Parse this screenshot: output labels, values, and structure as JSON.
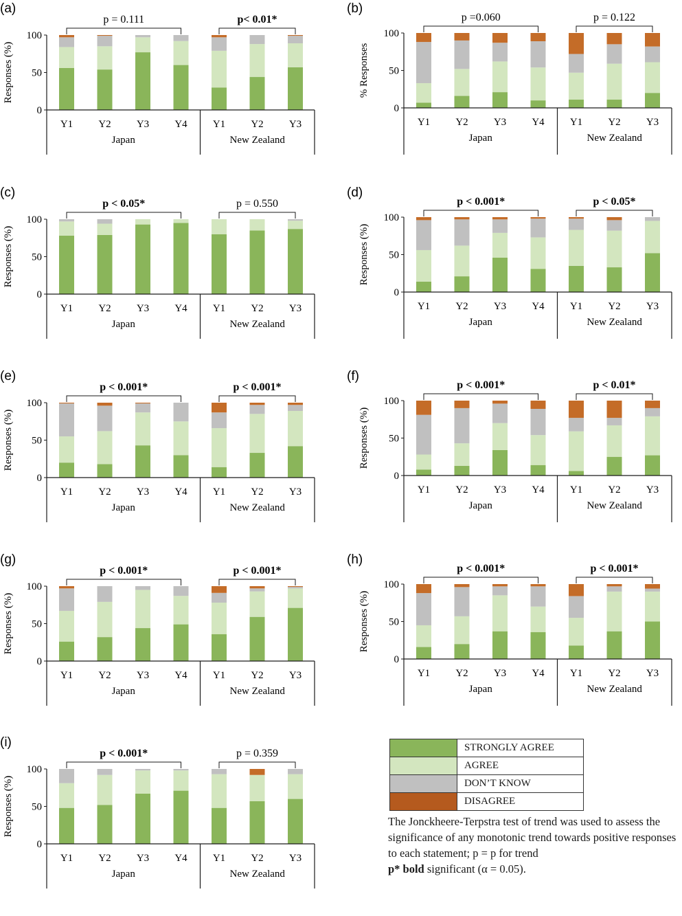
{
  "colors": {
    "strongly_agree": "#8ab55a",
    "agree": "#d3e6bf",
    "dont_know": "#c0c0c0",
    "disagree": "#c46c28",
    "axis": "#1a1a1a"
  },
  "legend": {
    "items": [
      {
        "key": "strongly_agree",
        "label": "STRONGLY AGREE",
        "color": "#8ab55a"
      },
      {
        "key": "agree",
        "label": "AGREE",
        "color": "#d3e6bf"
      },
      {
        "key": "dont_know",
        "label": "DON’T KNOW",
        "color": "#c0c0c0"
      },
      {
        "key": "disagree",
        "label": "DISAGREE",
        "color": "#b55a1e"
      }
    ]
  },
  "note": {
    "line1": "The Jonckheere-Terpstra test of trend was used to assess the significance of any monotonic trend towards positive responses to each statement;  p = p for trend",
    "bold_part": "p* bold",
    "line2": " significant (α = 0.05)."
  },
  "chart_data": [
    {
      "id": "a",
      "panel_label": "(a)",
      "type": "bar",
      "stacked": true,
      "ylabel": "Responses (%)",
      "ylim": [
        0,
        100
      ],
      "yticks": [
        0,
        50,
        100
      ],
      "groups": [
        {
          "name": "Japan",
          "categories": [
            "Y1",
            "Y2",
            "Y3",
            "Y4"
          ],
          "p_label": "p = 0.111",
          "significant": false,
          "series": {
            "strongly_agree": [
              56,
              54,
              77,
              60
            ],
            "agree": [
              28,
              31,
              20,
              32
            ],
            "dont_know": [
              13,
              14,
              3,
              8
            ],
            "disagree": [
              3,
              1,
              0,
              0
            ]
          }
        },
        {
          "name": "New Zealand",
          "categories": [
            "Y1",
            "Y2",
            "Y3"
          ],
          "p_label": "p< 0.01*",
          "significant": true,
          "series": {
            "strongly_agree": [
              30,
              44,
              57
            ],
            "agree": [
              49,
              44,
              32
            ],
            "dont_know": [
              18,
              12,
              10
            ],
            "disagree": [
              3,
              0,
              1
            ]
          }
        }
      ]
    },
    {
      "id": "b",
      "panel_label": "(b)",
      "type": "bar",
      "stacked": true,
      "ylabel": "% Responses",
      "ylim": [
        0,
        100
      ],
      "yticks": [
        0,
        50,
        100
      ],
      "groups": [
        {
          "name": "Japan",
          "categories": [
            "Y1",
            "Y2",
            "Y3",
            "Y4"
          ],
          "p_label": "p =0.060",
          "significant": false,
          "series": {
            "strongly_agree": [
              7,
              16,
              21,
              10
            ],
            "agree": [
              26,
              36,
              41,
              44
            ],
            "dont_know": [
              55,
              38,
              25,
              35
            ],
            "disagree": [
              12,
              10,
              13,
              11
            ]
          }
        },
        {
          "name": "New Zealand",
          "categories": [
            "Y1",
            "Y2",
            "Y3"
          ],
          "p_label": "p = 0.122",
          "significant": false,
          "series": {
            "strongly_agree": [
              11,
              11,
              20
            ],
            "agree": [
              36,
              48,
              41
            ],
            "dont_know": [
              25,
              26,
              21
            ],
            "disagree": [
              28,
              15,
              18
            ]
          }
        }
      ]
    },
    {
      "id": "c",
      "panel_label": "(c)",
      "type": "bar",
      "stacked": true,
      "ylabel": "Responses (%)",
      "ylim": [
        0,
        100
      ],
      "yticks": [
        0,
        50,
        100
      ],
      "groups": [
        {
          "name": "Japan",
          "categories": [
            "Y1",
            "Y2",
            "Y3",
            "Y4"
          ],
          "p_label": "p < 0.05*",
          "significant": true,
          "series": {
            "strongly_agree": [
              78,
              79,
              93,
              95
            ],
            "agree": [
              19,
              15,
              7,
              5
            ],
            "dont_know": [
              3,
              6,
              0,
              0
            ],
            "disagree": [
              0,
              0,
              0,
              0
            ]
          }
        },
        {
          "name": "New Zealand",
          "categories": [
            "Y1",
            "Y2",
            "Y3"
          ],
          "p_label": "p = 0.550",
          "significant": false,
          "series": {
            "strongly_agree": [
              80,
              85,
              87
            ],
            "agree": [
              20,
              15,
              11
            ],
            "dont_know": [
              0,
              0,
              2
            ],
            "disagree": [
              0,
              0,
              0
            ]
          }
        }
      ]
    },
    {
      "id": "d",
      "panel_label": "(d)",
      "type": "bar",
      "stacked": true,
      "ylabel": "Responses (%)",
      "ylim": [
        0,
        100
      ],
      "yticks": [
        0,
        50,
        100
      ],
      "groups": [
        {
          "name": "Japan",
          "categories": [
            "Y1",
            "Y2",
            "Y3",
            "Y4"
          ],
          "p_label": "p < 0.001*",
          "significant": true,
          "series": {
            "strongly_agree": [
              14,
              21,
              46,
              31
            ],
            "agree": [
              42,
              41,
              33,
              42
            ],
            "dont_know": [
              40,
              35,
              18,
              25
            ],
            "disagree": [
              4,
              3,
              3,
              2
            ]
          }
        },
        {
          "name": "New Zealand",
          "categories": [
            "Y1",
            "Y2",
            "Y3"
          ],
          "p_label": "p < 0.05*",
          "significant": true,
          "series": {
            "strongly_agree": [
              35,
              33,
              52
            ],
            "agree": [
              48,
              49,
              43
            ],
            "dont_know": [
              15,
              14,
              5
            ],
            "disagree": [
              2,
              4,
              0
            ]
          }
        }
      ]
    },
    {
      "id": "e",
      "panel_label": "(e)",
      "type": "bar",
      "stacked": true,
      "ylabel": "Responses (%)",
      "ylim": [
        0,
        100
      ],
      "yticks": [
        0,
        50,
        100
      ],
      "groups": [
        {
          "name": "Japan",
          "categories": [
            "Y1",
            "Y2",
            "Y3",
            "Y4"
          ],
          "p_label": "p < 0.001*",
          "significant": true,
          "series": {
            "strongly_agree": [
              20,
              18,
              43,
              30
            ],
            "agree": [
              35,
              44,
              44,
              45
            ],
            "dont_know": [
              44,
              34,
              12,
              25
            ],
            "disagree": [
              1,
              4,
              1,
              0
            ]
          }
        },
        {
          "name": "New Zealand",
          "categories": [
            "Y1",
            "Y2",
            "Y3"
          ],
          "p_label": "p < 0.001*",
          "significant": true,
          "series": {
            "strongly_agree": [
              14,
              33,
              42
            ],
            "agree": [
              52,
              52,
              47
            ],
            "dont_know": [
              21,
              12,
              8
            ],
            "disagree": [
              13,
              3,
              3
            ]
          }
        }
      ]
    },
    {
      "id": "f",
      "panel_label": "(f)",
      "type": "bar",
      "stacked": true,
      "ylabel": "Responses (%)",
      "ylim": [
        0,
        100
      ],
      "yticks": [
        0,
        50,
        100
      ],
      "groups": [
        {
          "name": "Japan",
          "categories": [
            "Y1",
            "Y2",
            "Y3",
            "Y4"
          ],
          "p_label": "p < 0.001*",
          "significant": true,
          "series": {
            "strongly_agree": [
              8,
              13,
              34,
              14
            ],
            "agree": [
              20,
              30,
              36,
              40
            ],
            "dont_know": [
              53,
              47,
              26,
              35
            ],
            "disagree": [
              19,
              10,
              4,
              11
            ]
          }
        },
        {
          "name": "New Zealand",
          "categories": [
            "Y1",
            "Y2",
            "Y3"
          ],
          "p_label": "p < 0.01*",
          "significant": true,
          "series": {
            "strongly_agree": [
              6,
              25,
              27
            ],
            "agree": [
              53,
              42,
              52
            ],
            "dont_know": [
              18,
              10,
              11
            ],
            "disagree": [
              23,
              23,
              10
            ]
          }
        }
      ]
    },
    {
      "id": "g",
      "panel_label": "(g)",
      "type": "bar",
      "stacked": true,
      "ylabel": "Responses (%)",
      "ylim": [
        0,
        100
      ],
      "yticks": [
        0,
        50,
        100
      ],
      "groups": [
        {
          "name": "Japan",
          "categories": [
            "Y1",
            "Y2",
            "Y3",
            "Y4"
          ],
          "p_label": "p < 0.001*",
          "significant": true,
          "series": {
            "strongly_agree": [
              26,
              32,
              44,
              49
            ],
            "agree": [
              41,
              47,
              51,
              38
            ],
            "dont_know": [
              30,
              21,
              5,
              13
            ],
            "disagree": [
              3,
              0,
              0,
              0
            ]
          }
        },
        {
          "name": "New Zealand",
          "categories": [
            "Y1",
            "Y2",
            "Y3"
          ],
          "p_label": "p < 0.001*",
          "significant": true,
          "series": {
            "strongly_agree": [
              36,
              59,
              71
            ],
            "agree": [
              42,
              34,
              26
            ],
            "dont_know": [
              13,
              4,
              2
            ],
            "disagree": [
              9,
              3,
              1
            ]
          }
        }
      ]
    },
    {
      "id": "h",
      "panel_label": "(h)",
      "type": "bar",
      "stacked": true,
      "ylabel": "Responses (%)",
      "ylim": [
        0,
        100
      ],
      "yticks": [
        0,
        50,
        100
      ],
      "groups": [
        {
          "name": "Japan",
          "categories": [
            "Y1",
            "Y2",
            "Y3",
            "Y4"
          ],
          "p_label": "p < 0.001*",
          "significant": true,
          "series": {
            "strongly_agree": [
              16,
              20,
              37,
              36
            ],
            "agree": [
              29,
              37,
              48,
              34
            ],
            "dont_know": [
              43,
              39,
              12,
              27
            ],
            "disagree": [
              12,
              4,
              3,
              3
            ]
          }
        },
        {
          "name": "New Zealand",
          "categories": [
            "Y1",
            "Y2",
            "Y3"
          ],
          "p_label": "p < 0.001*",
          "significant": true,
          "series": {
            "strongly_agree": [
              18,
              37,
              50
            ],
            "agree": [
              37,
              53,
              40
            ],
            "dont_know": [
              29,
              7,
              4
            ],
            "disagree": [
              16,
              3,
              6
            ]
          }
        }
      ]
    },
    {
      "id": "i",
      "panel_label": "(i)",
      "type": "bar",
      "stacked": true,
      "ylabel": "Responses (%)",
      "ylim": [
        0,
        100
      ],
      "yticks": [
        0,
        50,
        100
      ],
      "groups": [
        {
          "name": "Japan",
          "categories": [
            "Y1",
            "Y2",
            "Y3",
            "Y4"
          ],
          "p_label": "p < 0.001*",
          "significant": true,
          "series": {
            "strongly_agree": [
              48,
              52,
              67,
              71
            ],
            "agree": [
              33,
              40,
              31,
              27
            ],
            "dont_know": [
              19,
              8,
              2,
              2
            ],
            "disagree": [
              0,
              0,
              0,
              0
            ]
          }
        },
        {
          "name": "New Zealand",
          "categories": [
            "Y1",
            "Y2",
            "Y3"
          ],
          "p_label": "p = 0.359",
          "significant": false,
          "series": {
            "strongly_agree": [
              48,
              57,
              60
            ],
            "agree": [
              45,
              35,
              33
            ],
            "dont_know": [
              7,
              0,
              7
            ],
            "disagree": [
              0,
              8,
              0
            ]
          }
        }
      ]
    }
  ]
}
